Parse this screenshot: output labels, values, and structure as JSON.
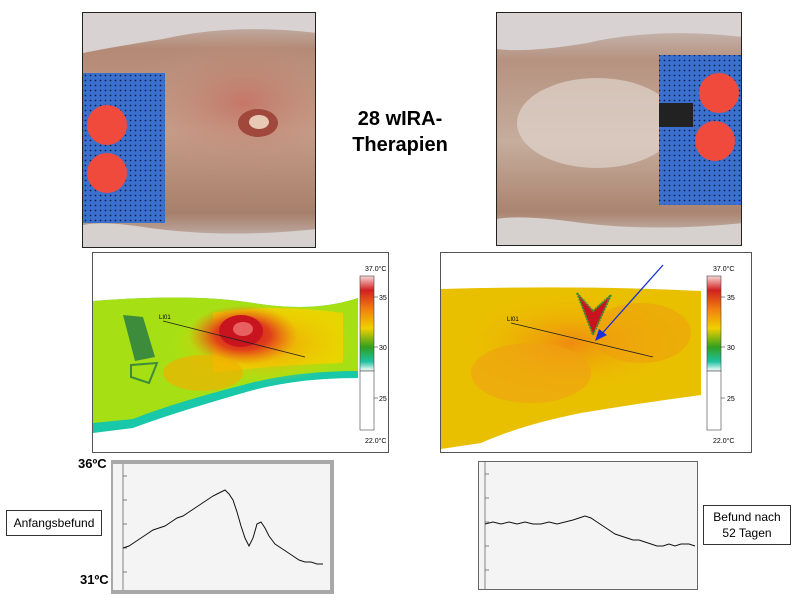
{
  "title": {
    "line1": "28 wIRA-",
    "line2": "Therapien"
  },
  "photos": {
    "before": {
      "description_icon": "wound-photo-before-icon"
    },
    "after": {
      "description_icon": "wound-photo-after-icon"
    }
  },
  "thermal": {
    "before": {
      "scale_max": "37.0°C",
      "scale_min": "22.0°C",
      "ticks": [
        "35",
        "30",
        "25"
      ],
      "line_label": "LI01"
    },
    "after": {
      "scale_max": "37.0°C",
      "scale_min": "22.0°C",
      "ticks": [
        "35",
        "30",
        "25"
      ],
      "line_label": "LI01"
    }
  },
  "profile": {
    "y_max_label": "36ºC",
    "y_min_label": "31ºC",
    "before_label": "Anfangsbefund",
    "after_label_line1": "Befund nach",
    "after_label_line2": "52 Tagen"
  },
  "colors": {
    "thermal_hot": "#c8141e",
    "thermal_warm": "#f07a10",
    "thermal_mid": "#f0d000",
    "thermal_cool": "#9ee010",
    "thermal_cold": "#18c8a8",
    "pad_blue": "#3a6fd0",
    "pad_dot": "#e83b3b",
    "arrow": "#1a2fd8"
  }
}
